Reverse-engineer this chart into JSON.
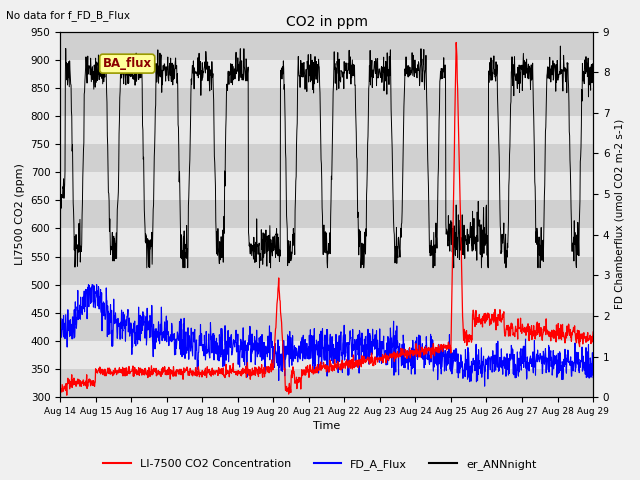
{
  "title": "CO2 in ppm",
  "top_left_text": "No data for f_FD_B_Flux",
  "xlabel": "Time",
  "ylabel_left": "LI7500 CO2 (ppm)",
  "ylabel_right": "FD Chamberflux (umol CO2 m-2 s-1)",
  "ylim_left": [
    300,
    950
  ],
  "ylim_right": [
    0.0,
    9.0
  ],
  "xticklabels": [
    "Aug 14",
    "Aug 15",
    "Aug 16",
    "Aug 17",
    "Aug 18",
    "Aug 19",
    "Aug 20",
    "Aug 21",
    "Aug 22",
    "Aug 23",
    "Aug 24",
    "Aug 25",
    "Aug 26",
    "Aug 27",
    "Aug 28",
    "Aug 29"
  ],
  "ba_flux_label": "BA_flux",
  "legend_entries": [
    "LI-7500 CO2 Concentration",
    "FD_A_Flux",
    "er_ANNnight"
  ],
  "n_points": 1500,
  "figsize": [
    6.4,
    4.8
  ],
  "dpi": 100
}
